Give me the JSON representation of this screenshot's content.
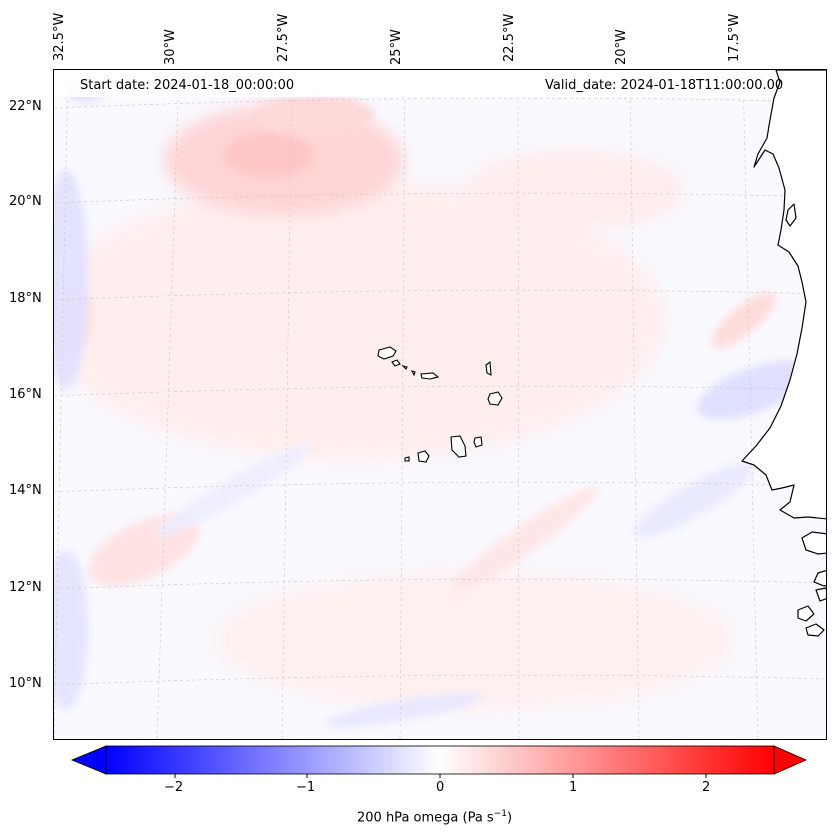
{
  "map": {
    "start_date_text": "Start date: 2024-01-18_00:00:00",
    "valid_date_text": "Valid_date: 2024-01-18T11:00:00.00",
    "longitude_labels": [
      "32.5°W",
      "30°W",
      "27.5°W",
      "25°W",
      "22.5°W",
      "20°W",
      "17.5°W"
    ],
    "latitude_labels": [
      "22°N",
      "20°N",
      "18°N",
      "16°N",
      "14°N",
      "12°N",
      "10°N"
    ]
  },
  "colorbar": {
    "tick_labels": [
      "−2",
      "−1",
      "0",
      "1",
      "2"
    ],
    "label_main": "200 hPa omega (Pa s",
    "label_sup": "−1",
    "label_end": ")"
  },
  "colors": {
    "negative": "#0000ff",
    "zero": "#ffffff",
    "positive": "#ff0000",
    "coastline": "#000000"
  }
}
